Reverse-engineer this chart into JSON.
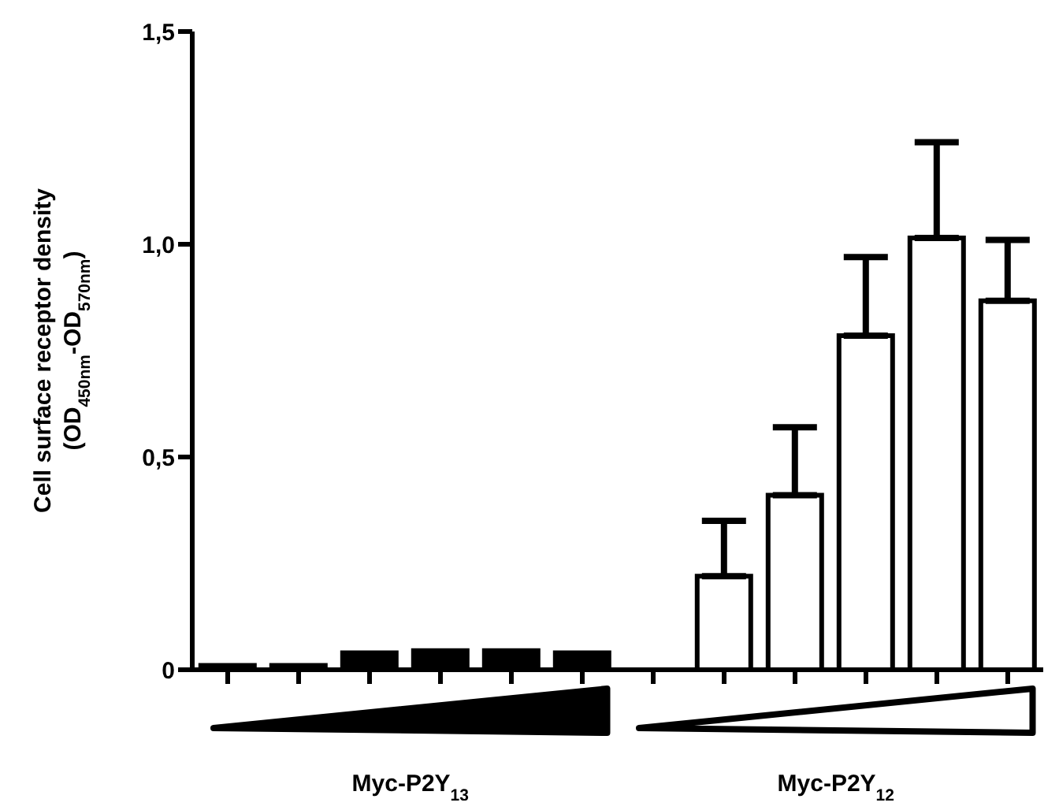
{
  "chart_data": {
    "type": "bar",
    "ylabel": "Cell surface receptor density\n(OD$_{450nm}$-OD$_{570nm}$)",
    "categories": [
      null,
      null,
      null,
      null,
      null,
      null,
      null,
      null,
      null,
      null,
      null,
      null
    ],
    "values": [
      0.01,
      0.01,
      0.04,
      0.045,
      0.045,
      0.04,
      null,
      0.22,
      0.41,
      0.785,
      1.015,
      0.867
    ],
    "errors": [
      null,
      null,
      null,
      null,
      null,
      null,
      null,
      [
        0.22,
        0.35
      ],
      [
        0.41,
        0.57
      ],
      [
        0.785,
        0.97
      ],
      [
        1.015,
        1.24
      ],
      [
        0.867,
        1.01
      ]
    ],
    "colors": [
      "#000000",
      "#000000",
      "#000000",
      "#000000",
      "#000000",
      "#000000",
      "#ffffff",
      "#ffffff",
      "#ffffff",
      "#ffffff",
      "#ffffff",
      "#ffffff"
    ],
    "ylim": [
      0,
      1.5
    ],
    "yticks": [
      0,
      {
        "value": 0.5,
        "label": "0,5"
      },
      {
        "value": 1.0,
        "label": "1,0"
      },
      {
        "value": 1.5,
        "label": "1,5"
      }
    ],
    "annotations": [
      "Myc-P2Y$_{13}$",
      "Myc-P2Y$_{12}$"
    ],
    "tick_labels": "y",
    "grid": false,
    "legend": false
  }
}
